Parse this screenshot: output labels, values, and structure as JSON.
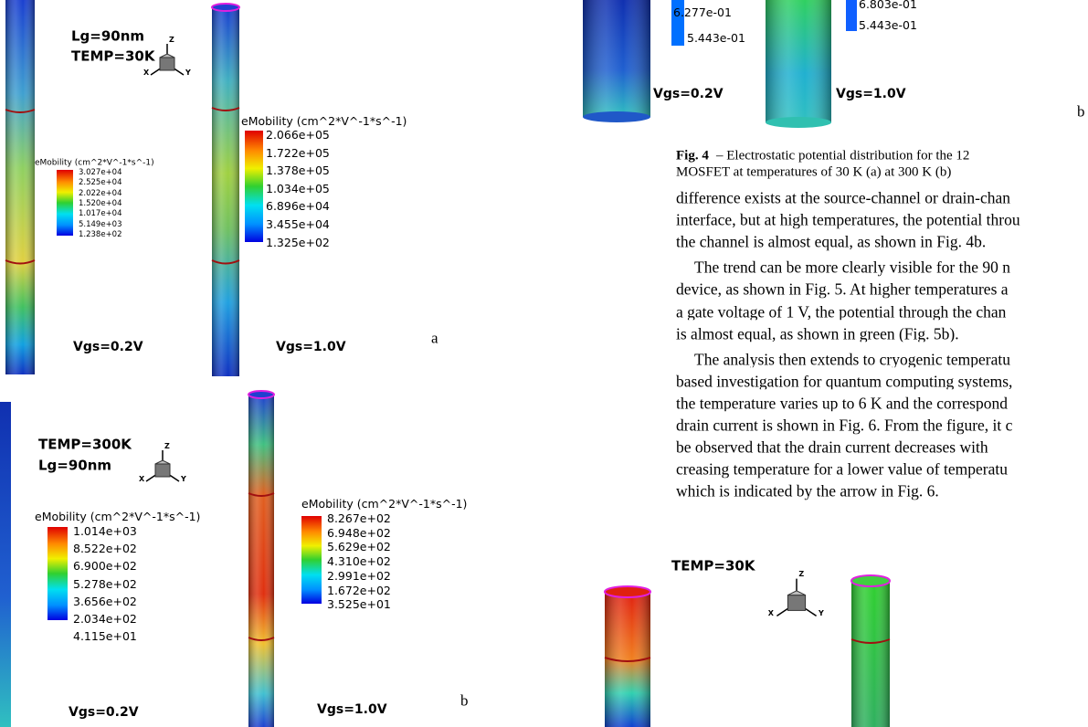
{
  "fig_a": {
    "label_lg": "Lg=90nm",
    "label_temp": "TEMP=30K",
    "axes": [
      "Z",
      "X",
      "Y"
    ],
    "legend_left": {
      "title": "eMobility (cm^2*V^-1*s^-1)",
      "values": [
        "3.027e+04",
        "2.525e+04",
        "2.022e+04",
        "1.520e+04",
        "1.017e+04",
        "5.149e+03",
        "1.238e+02"
      ]
    },
    "legend_right": {
      "title": "eMobility (cm^2*V^-1*s^-1)",
      "values": [
        "2.066e+05",
        "1.722e+05",
        "1.378e+05",
        "1.034e+05",
        "6.896e+04",
        "3.455e+04",
        "1.325e+02"
      ]
    },
    "vgs_left": "Vgs=0.2V",
    "vgs_right": "Vgs=1.0V",
    "panel": "a"
  },
  "fig_b": {
    "label_temp": "TEMP=300K",
    "label_lg": "Lg=90nm",
    "axes": [
      "Z",
      "X",
      "Y"
    ],
    "legend_left": {
      "title": "eMobility (cm^2*V^-1*s^-1)",
      "values": [
        "1.014e+03",
        "8.522e+02",
        "6.900e+02",
        "5.278e+02",
        "3.656e+02",
        "2.034e+02",
        "4.115e+01"
      ]
    },
    "legend_right": {
      "title": "eMobility (cm^2*V^-1*s^-1)",
      "values": [
        "8.267e+02",
        "6.948e+02",
        "5.629e+02",
        "4.310e+02",
        "2.991e+02",
        "1.672e+02",
        "3.525e+01"
      ]
    },
    "vgs_left": "Vgs=0.2V",
    "vgs_right": "Vgs=1.0V",
    "panel": "b"
  },
  "fig4_top": {
    "legend_left_values": [
      "6.277e-01",
      "5.443e-01"
    ],
    "legend_right_values": [
      "6.803e-01",
      "5.443e-01"
    ],
    "vgs_left": "Vgs=0.2V",
    "vgs_right": "Vgs=1.0V",
    "panel": "b"
  },
  "caption": {
    "label": "Fig. 4",
    "lines": [
      "– Electrostatic potential distribution for the 12",
      "MOSFET at temperatures of 30 K (a) at 300 K (b)"
    ]
  },
  "paragraphs": [
    [
      "difference exists at the source-channel or drain-chan",
      "interface, but at high temperatures, the potential throu",
      "the channel is almost equal, as shown in Fig. 4b."
    ],
    [
      "The trend can be more clearly visible for the 90 n",
      "device, as shown in Fig. 5. At higher temperatures a",
      "a gate voltage of 1 V, the potential through the chan",
      "is almost equal, as shown in green (Fig. 5b)."
    ],
    [
      "The analysis then extends to cryogenic temperatu",
      "based investigation for quantum computing systems,",
      "the temperature varies up to 6 K and the correspond",
      "drain current is shown in Fig. 6. From the figure, it c",
      "be observed that the drain current decreases with",
      "creasing temperature for a lower value of temperatu",
      "which is indicated by the arrow in Fig. 6."
    ]
  ],
  "fig5": {
    "label_temp": "TEMP=30K",
    "axes": [
      "Z",
      "X",
      "Y"
    ]
  }
}
